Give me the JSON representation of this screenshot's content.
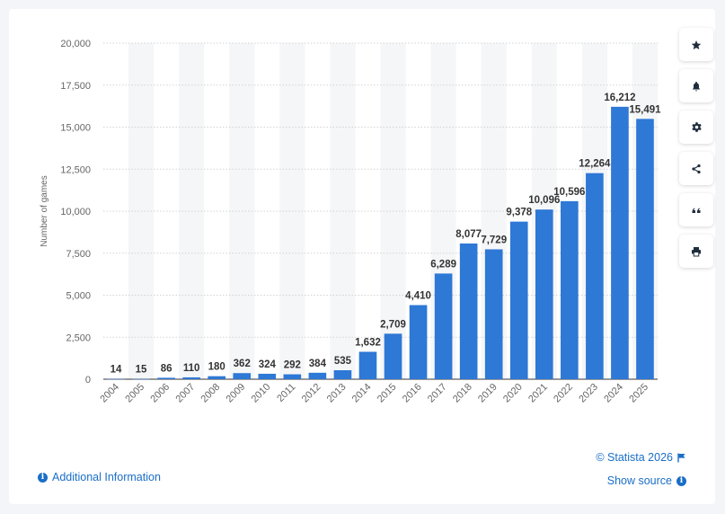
{
  "colors": {
    "bar": "#2e78d6",
    "accent": "#1a6ec7",
    "grid": "#d3d3d3",
    "band": "#f5f6f8"
  },
  "chart_data": {
    "type": "bar",
    "ylabel": "Number of games",
    "xlabel": "",
    "ylim": [
      0,
      20000
    ],
    "yticks": [
      0,
      2500,
      5000,
      7500,
      10000,
      12500,
      15000,
      17500,
      20000
    ],
    "ytick_labels": [
      "0",
      "2,500",
      "5,000",
      "7,500",
      "10,000",
      "12,500",
      "15,000",
      "17,500",
      "20,000"
    ],
    "grid": true,
    "categories": [
      "2004",
      "2005",
      "2006",
      "2007",
      "2008",
      "2009",
      "2010",
      "2011",
      "2012",
      "2013",
      "2014",
      "2015",
      "2016",
      "2017",
      "2018",
      "2019",
      "2020",
      "2021",
      "2022",
      "2023",
      "2024",
      "2025"
    ],
    "values": [
      14,
      15,
      86,
      110,
      180,
      362,
      324,
      292,
      384,
      535,
      1632,
      2709,
      4410,
      6289,
      8077,
      7729,
      9378,
      10096,
      10596,
      12264,
      16212,
      15491
    ],
    "value_labels": [
      "14",
      "15",
      "86",
      "110",
      "180",
      "362",
      "324",
      "292",
      "384",
      "535",
      "1,632",
      "2,709",
      "4,410",
      "6,289",
      "8,077",
      "7,729",
      "9,378",
      "10,096",
      "10,596",
      "12,264",
      "16,212",
      "15,491"
    ]
  },
  "toolbar": [
    {
      "name": "star-icon",
      "icon": "star"
    },
    {
      "name": "bell-icon",
      "icon": "bell"
    },
    {
      "name": "gear-icon",
      "icon": "gear"
    },
    {
      "name": "share-icon",
      "icon": "share"
    },
    {
      "name": "quote-icon",
      "icon": "quote"
    },
    {
      "name": "print-icon",
      "icon": "print"
    }
  ],
  "footer": {
    "additional_info": "Additional Information",
    "copyright": "© Statista 2026",
    "show_source": "Show source"
  }
}
